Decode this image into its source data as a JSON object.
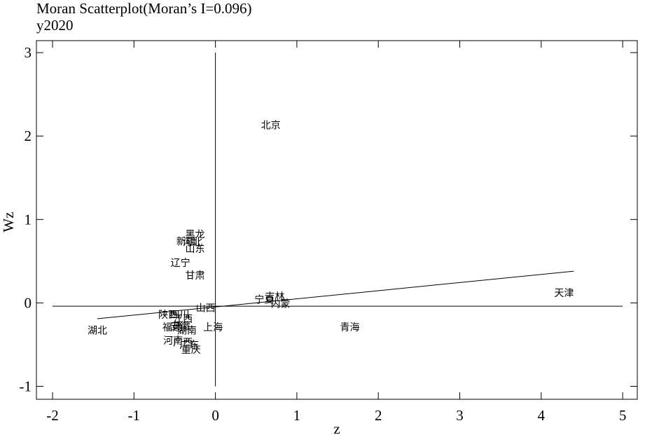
{
  "chart_data": {
    "type": "scatter",
    "title": "Moran Scatterplot(Moran’s I=0.096)",
    "subtitle": "y2020",
    "xlabel": "z",
    "ylabel": "Wz",
    "xlim": [
      -2,
      5
    ],
    "ylim": [
      -1,
      3
    ],
    "x_ticks": [
      "-2",
      "-1",
      "0",
      "1",
      "2",
      "3",
      "4",
      "5"
    ],
    "y_ticks": [
      "-1",
      "0",
      "1",
      "2",
      "3"
    ],
    "grid": false,
    "reference_lines": {
      "x": 0,
      "y": -0.04
    },
    "fit_line": {
      "x": [
        -1.45,
        4.4
      ],
      "y": [
        -0.19,
        0.38
      ]
    },
    "points": [
      {
        "label": "北京",
        "x": 0.68,
        "y": 2.13
      },
      {
        "label": "天津",
        "x": 4.28,
        "y": 0.12
      },
      {
        "label": "青海",
        "x": 1.65,
        "y": -0.29
      },
      {
        "label": "湖北",
        "x": -1.45,
        "y": -0.33
      },
      {
        "label": "吉林",
        "x": 0.73,
        "y": 0.08
      },
      {
        "label": "宁夏",
        "x": 0.6,
        "y": 0.04
      },
      {
        "label": "内蒙",
        "x": 0.8,
        "y": -0.01
      },
      {
        "label": "山西",
        "x": -0.12,
        "y": -0.06
      },
      {
        "label": "上海",
        "x": -0.03,
        "y": -0.29
      },
      {
        "label": "黑龙",
        "x": -0.25,
        "y": 0.82
      },
      {
        "label": "新疆",
        "x": -0.36,
        "y": 0.74
      },
      {
        "label": "河北",
        "x": -0.28,
        "y": 0.73
      },
      {
        "label": "山东",
        "x": -0.25,
        "y": 0.65
      },
      {
        "label": "辽宁",
        "x": -0.43,
        "y": 0.48
      },
      {
        "label": "甘肃",
        "x": -0.25,
        "y": 0.33
      },
      {
        "label": "陕西",
        "x": -0.58,
        "y": -0.14
      },
      {
        "label": "四川",
        "x": -0.44,
        "y": -0.14
      },
      {
        "label": "江西",
        "x": -0.4,
        "y": -0.19
      },
      {
        "label": "福建",
        "x": -0.53,
        "y": -0.29
      },
      {
        "label": "安徽",
        "x": -0.43,
        "y": -0.28
      },
      {
        "label": "湖南",
        "x": -0.35,
        "y": -0.33
      },
      {
        "label": "河南",
        "x": -0.52,
        "y": -0.45
      },
      {
        "label": "广西",
        "x": -0.4,
        "y": -0.47
      },
      {
        "label": "广东",
        "x": -0.32,
        "y": -0.5
      },
      {
        "label": "重庆",
        "x": -0.3,
        "y": -0.56
      }
    ]
  }
}
